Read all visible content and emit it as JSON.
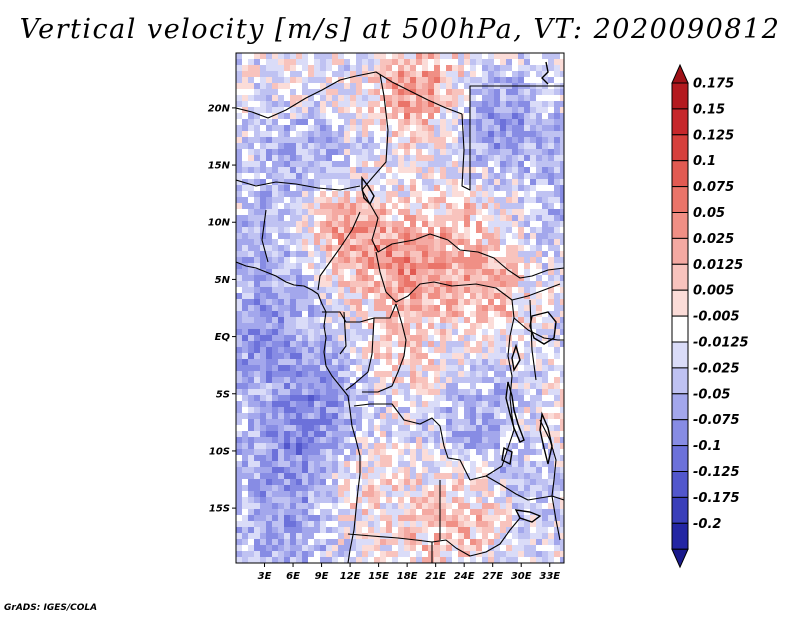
{
  "title": "Vertical velocity [m/s] at 500hPa, VT: 2020090812",
  "credit": "GrADS: IGES/COLA",
  "map": {
    "variable": "Vertical velocity",
    "units": "m/s",
    "level": "500hPa",
    "valid_time": "2020090812",
    "lon_range": [
      0,
      34.5
    ],
    "lat_range": [
      -19.8,
      24.8
    ],
    "lon_ticks": [
      {
        "value": 3,
        "label": "3E"
      },
      {
        "value": 6,
        "label": "6E"
      },
      {
        "value": 9,
        "label": "9E"
      },
      {
        "value": 12,
        "label": "12E"
      },
      {
        "value": 15,
        "label": "15E"
      },
      {
        "value": 18,
        "label": "18E"
      },
      {
        "value": 21,
        "label": "21E"
      },
      {
        "value": 24,
        "label": "24E"
      },
      {
        "value": 27,
        "label": "27E"
      },
      {
        "value": 30,
        "label": "30E"
      },
      {
        "value": 33,
        "label": "33E"
      }
    ],
    "lat_ticks": [
      {
        "value": 20,
        "label": "20N"
      },
      {
        "value": 15,
        "label": "15N"
      },
      {
        "value": 10,
        "label": "10N"
      },
      {
        "value": 5,
        "label": "5N"
      },
      {
        "value": 0,
        "label": "EQ"
      },
      {
        "value": -5,
        "label": "5S"
      },
      {
        "value": -10,
        "label": "10S"
      },
      {
        "value": -15,
        "label": "15S"
      }
    ]
  },
  "colorbar": {
    "orientation": "vertical",
    "extend": "both",
    "levels": [
      {
        "label": "0.175",
        "color": "#b31a1f"
      },
      {
        "label": "0.15",
        "color": "#c6272b"
      },
      {
        "label": "0.125",
        "color": "#d6403c"
      },
      {
        "label": "0.1",
        "color": "#e25a52"
      },
      {
        "label": "0.075",
        "color": "#ea7469"
      },
      {
        "label": "0.05",
        "color": "#f08f85"
      },
      {
        "label": "0.025",
        "color": "#f4a9a2"
      },
      {
        "label": "0.0125",
        "color": "#f8c3bd"
      },
      {
        "label": "0.005",
        "color": "#fbdcd8"
      },
      {
        "label": "-0.005",
        "color": "#ffffff"
      },
      {
        "label": "-0.0125",
        "color": "#dadcf8"
      },
      {
        "label": "-0.025",
        "color": "#bfc2f2"
      },
      {
        "label": "-0.05",
        "color": "#a3a7ec"
      },
      {
        "label": "-0.075",
        "color": "#878ce4"
      },
      {
        "label": "-0.1",
        "color": "#6c71da"
      },
      {
        "label": "-0.125",
        "color": "#5257cc"
      },
      {
        "label": "-0.175",
        "color": "#3a3fba"
      },
      {
        "label": "-0.2",
        "color": "#2426a3"
      }
    ],
    "top_arrow_color": "#a01218",
    "bottom_arrow_color": "#1a1a8c"
  }
}
